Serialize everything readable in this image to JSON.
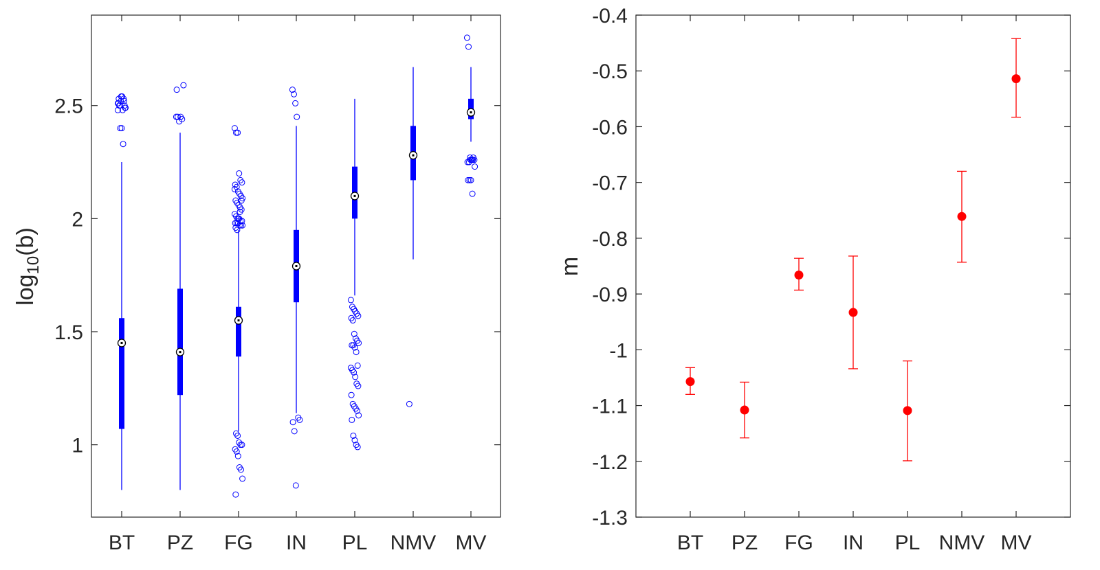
{
  "colors": {
    "box": "#0000ff",
    "points": "#ff0000",
    "axis": "#262626",
    "background": "#ffffff"
  },
  "chart_data": [
    {
      "type": "box",
      "title": "",
      "xlabel": "",
      "ylabel_base": "log",
      "ylabel_sub": "10",
      "ylabel_rest": "(b)",
      "categories": [
        "BT",
        "PZ",
        "FG",
        "IN",
        "PL",
        "NMV",
        "MV"
      ],
      "ylim": [
        0.68,
        2.9
      ],
      "yticks": [
        1,
        1.5,
        2,
        2.5
      ],
      "ytick_labels": [
        "1",
        "1.5",
        "2",
        "2.5"
      ],
      "grid": false,
      "boxes": [
        {
          "category": "BT",
          "whisker_low": 0.8,
          "q1": 1.07,
          "median": 1.45,
          "q3": 1.56,
          "whisker_high": 2.25,
          "outliers": [
            2.48,
            2.5,
            2.52,
            2.54,
            2.53,
            2.49,
            2.51,
            2.5,
            2.54,
            2.48,
            2.52,
            2.49,
            2.53,
            2.4,
            2.4,
            2.33,
            2.5,
            2.51
          ]
        },
        {
          "category": "PZ",
          "whisker_low": 0.8,
          "q1": 1.22,
          "median": 1.41,
          "q3": 1.69,
          "whisker_high": 2.38,
          "outliers": [
            2.45,
            2.45,
            2.43,
            2.45,
            2.44,
            2.59,
            2.57
          ]
        },
        {
          "category": "FG",
          "whisker_low": 1.06,
          "q1": 1.39,
          "median": 1.55,
          "q3": 1.61,
          "whisker_high": 1.95,
          "outliers": [
            2.4,
            2.38,
            2.38,
            2.2,
            2.17,
            2.16,
            2.15,
            2.14,
            2.12,
            2.11,
            2.1,
            2.09,
            2.08,
            2.07,
            2.06,
            2.05,
            2.04,
            2.02,
            2.01,
            2.0,
            2.0,
            1.99,
            1.99,
            1.98,
            1.98,
            1.98,
            1.97,
            1.97,
            1.97,
            1.96,
            1.95,
            2.0,
            2.03,
            2.08,
            2.13,
            1.05,
            1.04,
            1.01,
            1.0,
            1.0,
            0.98,
            0.97,
            0.95,
            0.9,
            0.89,
            0.85,
            0.78
          ]
        },
        {
          "category": "IN",
          "whisker_low": 1.14,
          "q1": 1.63,
          "median": 1.79,
          "q3": 1.95,
          "whisker_high": 2.41,
          "outliers": [
            2.57,
            2.55,
            2.51,
            2.45,
            1.12,
            1.11,
            1.1,
            1.06,
            0.82
          ]
        },
        {
          "category": "PL",
          "whisker_low": 1.66,
          "q1": 2.0,
          "median": 2.1,
          "q3": 2.23,
          "whisker_high": 2.53,
          "outliers": [
            1.64,
            1.61,
            1.6,
            1.59,
            1.58,
            1.57,
            1.56,
            1.55,
            1.49,
            1.47,
            1.46,
            1.45,
            1.44,
            1.44,
            1.43,
            1.41,
            1.35,
            1.34,
            1.33,
            1.32,
            1.3,
            1.27,
            1.26,
            1.22,
            1.18,
            1.17,
            1.16,
            1.15,
            1.13,
            1.11,
            1.04,
            1.02,
            1.0,
            0.99
          ]
        },
        {
          "category": "NMV",
          "whisker_low": 1.82,
          "q1": 2.17,
          "median": 2.28,
          "q3": 2.41,
          "whisker_high": 2.67,
          "outliers": [
            1.18
          ]
        },
        {
          "category": "MV",
          "whisker_low": 2.34,
          "q1": 2.44,
          "median": 2.47,
          "q3": 2.53,
          "whisker_high": 2.67,
          "outliers": [
            2.8,
            2.76,
            2.27,
            2.26,
            2.26,
            2.26,
            2.25,
            2.25,
            2.26,
            2.26,
            2.27,
            2.23,
            2.17,
            2.17,
            2.17,
            2.11
          ]
        }
      ]
    },
    {
      "type": "errorbar",
      "title": "",
      "xlabel": "",
      "ylabel": "m",
      "categories": [
        "BT",
        "PZ",
        "FG",
        "IN",
        "PL",
        "NMV",
        "MV"
      ],
      "ylim": [
        -1.3,
        -0.4
      ],
      "yticks": [
        -1.3,
        -1.2,
        -1.1,
        -1,
        -0.9,
        -0.8,
        -0.7,
        -0.6,
        -0.5,
        -0.4
      ],
      "ytick_labels": [
        "-1.3",
        "-1.2",
        "-1.1",
        "-1",
        "-0.9",
        "-0.8",
        "-0.7",
        "-0.6",
        "-0.5",
        "-0.4"
      ],
      "grid": false,
      "values": [
        -1.057,
        -1.108,
        -0.866,
        -0.933,
        -1.109,
        -0.761,
        -0.514
      ],
      "lower": [
        -1.08,
        -1.158,
        -0.893,
        -1.034,
        -1.199,
        -0.843,
        -0.583
      ],
      "upper": [
        -1.032,
        -1.058,
        -0.836,
        -0.832,
        -1.02,
        -0.68,
        -0.442
      ]
    }
  ]
}
